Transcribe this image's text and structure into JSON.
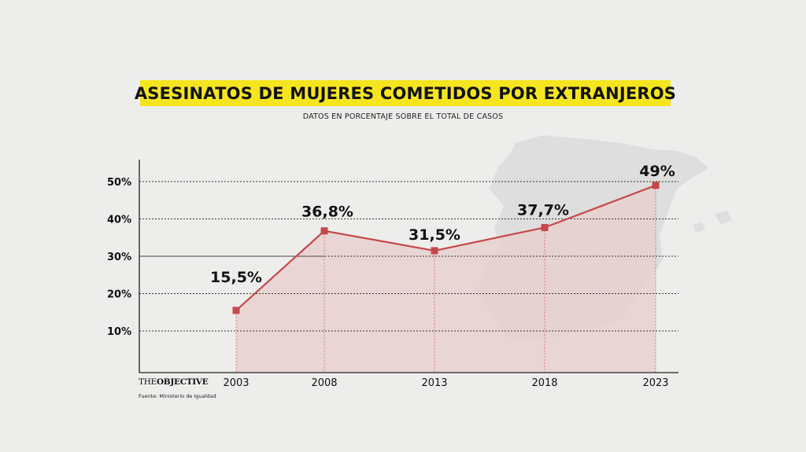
{
  "header": {
    "title": "ASESINATOS DE MUJERES COMETIDOS POR EXTRANJEROS",
    "subtitle": "DATOS EN PORCENTAJE SOBRE EL TOTAL DE CASOS"
  },
  "footer": {
    "brand_prefix": "THE",
    "brand_bold": "OBJECTIVE",
    "source": "Fuente: Ministerio de Igualdad"
  },
  "colors": {
    "line": "#c6484b",
    "fill": "#e8cfcd",
    "highlight": "#f5e51f"
  },
  "chart_data": {
    "type": "area",
    "title": "ASESINATOS DE MUJERES COMETIDOS POR EXTRANJEROS",
    "subtitle": "DATOS EN PORCENTAJE SOBRE EL TOTAL DE CASOS",
    "xlabel": "",
    "ylabel": "",
    "categories": [
      "2003",
      "2008",
      "2013",
      "2018",
      "2023"
    ],
    "values": [
      15.5,
      36.8,
      31.5,
      37.7,
      49
    ],
    "data_labels": [
      "15,5%",
      "36,8%",
      "31,5%",
      "37,7%",
      "49%"
    ],
    "yticks": [
      10,
      20,
      30,
      40,
      50
    ],
    "ytick_labels": [
      "10%",
      "20%",
      "30%",
      "40%",
      "50%"
    ],
    "ylim": [
      0,
      55
    ],
    "grid": "horizontal dotted"
  }
}
